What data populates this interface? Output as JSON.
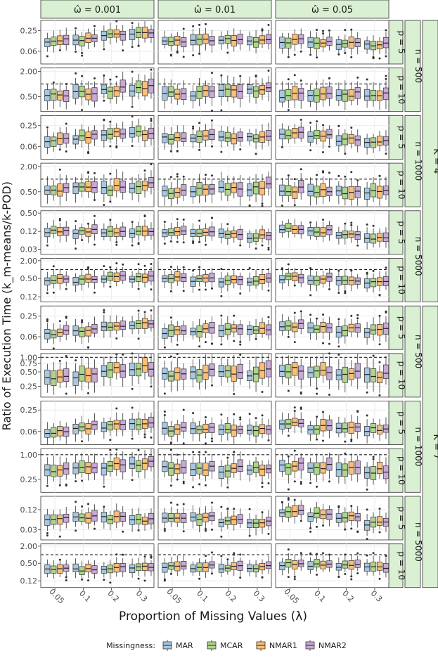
{
  "figure": {
    "ylabel": "Ratio of Execution Time (k_m-means/k-POD)",
    "xlabel": "Proportion of Missing Values (λ)",
    "legend_title": "Missingness:"
  },
  "colors": {
    "MAR": "#a6c8e0",
    "MCAR": "#aed68a",
    "NMAR1": "#fdbf75",
    "NMAR2": "#c9a9d5",
    "strip_bg": "#d9f0d3",
    "panel_grid": "#ebebeb",
    "ref_line": "#222222"
  },
  "chart_data": {
    "type": "boxplot",
    "layout": "facet grid: columns = omega, rows = K / n / p",
    "x_categories": [
      "0.05",
      "0.1",
      "0.2",
      "0.3"
    ],
    "columns": [
      "ω̂ = 0.001",
      "ω̂ = 0.01",
      "ω̂ = 0.05"
    ],
    "K_groups": [
      "K = 4",
      "K = 7"
    ],
    "n_groups": [
      "n = 500",
      "n = 1000",
      "n = 5000"
    ],
    "p_groups": [
      "p = 5",
      "p = 10"
    ],
    "series": [
      {
        "name": "MAR"
      },
      {
        "name": "MCAR"
      },
      {
        "name": "NMAR1"
      },
      {
        "name": "NMAR2"
      }
    ],
    "y_scale": "log",
    "reference_line": 1,
    "rows": [
      {
        "K": "K = 4",
        "n": "n = 500",
        "p": "p = 5",
        "ticks": [
          0.06,
          0.25
        ],
        "ylim": [
          0.025,
          0.5
        ],
        "ref": false,
        "medians": [
          [
            0.12,
            0.14,
            0.19,
            0.21
          ],
          [
            0.12,
            0.13,
            0.13,
            0.13
          ],
          [
            0.12,
            0.11,
            0.1,
            0.1
          ]
        ]
      },
      {
        "K": "K = 4",
        "n": "n = 500",
        "p": "p = 10",
        "ticks": [
          0.5,
          2.0
        ],
        "ylim": [
          0.22,
          2.4
        ],
        "ref": true,
        "medians": [
          [
            0.55,
            0.62,
            0.72,
            0.8
          ],
          [
            0.58,
            0.62,
            0.68,
            0.75
          ],
          [
            0.55,
            0.52,
            0.55,
            0.58
          ]
        ]
      },
      {
        "K": "K = 4",
        "n": "n = 1000",
        "p": "p = 5",
        "ticks": [
          0.06,
          0.25
        ],
        "ylim": [
          0.025,
          0.5
        ],
        "ref": false,
        "medians": [
          [
            0.1,
            0.12,
            0.15,
            0.15
          ],
          [
            0.11,
            0.12,
            0.11,
            0.11
          ],
          [
            0.14,
            0.12,
            0.1,
            0.09
          ]
        ]
      },
      {
        "K": "K = 4",
        "n": "n = 1000",
        "p": "p = 10",
        "ticks": [
          0.5,
          2.0
        ],
        "ylim": [
          0.22,
          2.4
        ],
        "ref": true,
        "medians": [
          [
            0.55,
            0.62,
            0.62,
            0.72
          ],
          [
            0.52,
            0.55,
            0.6,
            0.65
          ],
          [
            0.55,
            0.5,
            0.52,
            0.5
          ]
        ]
      },
      {
        "K": "K = 4",
        "n": "n = 5000",
        "p": "p = 5",
        "ticks": [
          0.03,
          0.12,
          0.5
        ],
        "ylim": [
          0.02,
          0.6
        ],
        "ref": false,
        "medians": [
          [
            0.12,
            0.12,
            0.12,
            0.12
          ],
          [
            0.12,
            0.12,
            0.1,
            0.08
          ],
          [
            0.14,
            0.12,
            0.09,
            0.07
          ]
        ]
      },
      {
        "K": "K = 4",
        "n": "n = 5000",
        "p": "p = 10",
        "ticks": [
          0.12,
          0.5,
          2.0
        ],
        "ylim": [
          0.08,
          2.4
        ],
        "ref": true,
        "medians": [
          [
            0.45,
            0.45,
            0.55,
            0.55
          ],
          [
            0.5,
            0.48,
            0.45,
            0.45
          ],
          [
            0.55,
            0.48,
            0.4,
            0.38
          ]
        ]
      },
      {
        "K": "K = 7",
        "n": "n = 500",
        "p": "p = 5",
        "ticks": [
          0.06,
          0.25
        ],
        "ylim": [
          0.025,
          0.5
        ],
        "ref": false,
        "medians": [
          [
            0.08,
            0.1,
            0.13,
            0.14
          ],
          [
            0.09,
            0.1,
            0.1,
            0.1
          ],
          [
            0.13,
            0.11,
            0.1,
            0.09
          ]
        ]
      },
      {
        "K": "K = 7",
        "n": "n = 500",
        "p": "p = 10",
        "ticks": [
          0.25,
          0.5,
          0.75,
          1.0
        ],
        "ylim": [
          0.15,
          1.2
        ],
        "ref": true,
        "medians": [
          [
            0.4,
            0.45,
            0.55,
            0.6
          ],
          [
            0.45,
            0.48,
            0.48,
            0.5
          ],
          [
            0.55,
            0.5,
            0.45,
            0.42
          ]
        ]
      },
      {
        "K": "K = 7",
        "n": "n = 1000",
        "p": "p = 5",
        "ticks": [
          0.06,
          0.25
        ],
        "ylim": [
          0.025,
          0.45
        ],
        "ref": false,
        "medians": [
          [
            0.06,
            0.08,
            0.09,
            0.1
          ],
          [
            0.07,
            0.07,
            0.07,
            0.07
          ],
          [
            0.1,
            0.08,
            0.07,
            0.07
          ]
        ]
      },
      {
        "K": "K = 7",
        "n": "n = 1000",
        "p": "p = 10",
        "ticks": [
          0.25,
          1.0
        ],
        "ylim": [
          0.12,
          1.4
        ],
        "ref": true,
        "medians": [
          [
            0.4,
            0.45,
            0.55,
            0.6
          ],
          [
            0.5,
            0.45,
            0.45,
            0.45
          ],
          [
            0.55,
            0.5,
            0.45,
            0.4
          ]
        ]
      },
      {
        "K": "K = 7",
        "n": "n = 5000",
        "p": "p = 5",
        "ticks": [
          0.03,
          0.12
        ],
        "ylim": [
          0.015,
          0.3
        ],
        "ref": false,
        "medians": [
          [
            0.06,
            0.07,
            0.07,
            0.06
          ],
          [
            0.07,
            0.07,
            0.06,
            0.05
          ],
          [
            0.1,
            0.09,
            0.07,
            0.05
          ]
        ]
      },
      {
        "K": "K = 7",
        "n": "n = 5000",
        "p": "p = 10",
        "ticks": [
          0.12,
          0.5,
          2.0
        ],
        "ylim": [
          0.07,
          2.4
        ],
        "ref": true,
        "medians": [
          [
            0.3,
            0.3,
            0.35,
            0.38
          ],
          [
            0.4,
            0.38,
            0.35,
            0.35
          ],
          [
            0.5,
            0.45,
            0.4,
            0.35
          ]
        ]
      }
    ]
  }
}
